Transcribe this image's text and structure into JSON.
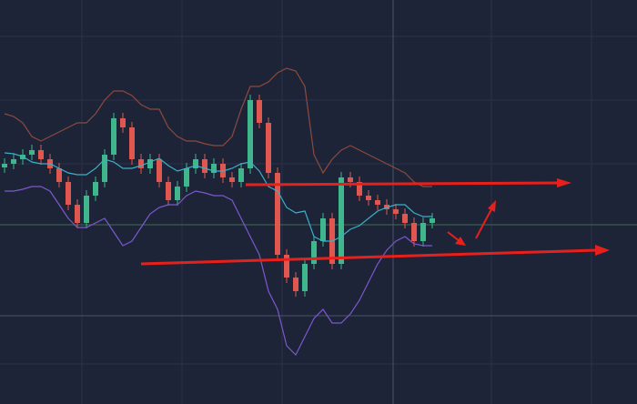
{
  "chart_data": {
    "type": "candlestick",
    "ylim": [
      0,
      444
    ],
    "up_color": "#3fb68b",
    "down_color": "#e0574f",
    "open": [
      260,
      264,
      269,
      274,
      279,
      269,
      259,
      244,
      219,
      199,
      229,
      244,
      274,
      314,
      304,
      269,
      259,
      269,
      244,
      224,
      239,
      259,
      269,
      254,
      264,
      249,
      244,
      259,
      334,
      309,
      254,
      164,
      139,
      124,
      154,
      179,
      204,
      154,
      249,
      244,
      229,
      224,
      219,
      214,
      209,
      199,
      179,
      199
    ],
    "high": [
      270,
      275,
      280,
      285,
      285,
      275,
      265,
      250,
      225,
      235,
      250,
      280,
      320,
      320,
      310,
      275,
      275,
      275,
      250,
      245,
      265,
      275,
      275,
      270,
      270,
      255,
      265,
      340,
      340,
      315,
      260,
      170,
      145,
      160,
      185,
      210,
      210,
      255,
      255,
      250,
      235,
      230,
      225,
      220,
      215,
      205,
      205,
      210
    ],
    "low": [
      254,
      258,
      263,
      268,
      263,
      253,
      238,
      213,
      193,
      193,
      223,
      238,
      268,
      298,
      263,
      253,
      253,
      238,
      218,
      218,
      233,
      253,
      248,
      248,
      243,
      238,
      238,
      253,
      303,
      248,
      158,
      133,
      118,
      118,
      148,
      173,
      148,
      148,
      238,
      223,
      218,
      213,
      208,
      203,
      193,
      173,
      173,
      193
    ],
    "close": [
      264,
      269,
      274,
      279,
      269,
      259,
      244,
      219,
      199,
      229,
      244,
      274,
      314,
      304,
      269,
      259,
      269,
      244,
      224,
      239,
      259,
      269,
      254,
      264,
      249,
      244,
      259,
      334,
      309,
      254,
      164,
      139,
      124,
      154,
      179,
      204,
      154,
      249,
      244,
      229,
      224,
      219,
      214,
      209,
      199,
      179,
      199,
      204
    ],
    "overlays": [
      {
        "color": "#8c4a3c",
        "values": [
          319,
          316,
          309,
          294,
          289,
          294,
          299,
          304,
          309,
          309,
          319,
          334,
          344,
          344,
          339,
          329,
          324,
          324,
          304,
          294,
          289,
          289,
          286,
          284,
          284,
          294,
          324,
          349,
          349,
          354,
          364,
          369,
          366,
          349,
          274,
          254,
          269,
          279,
          284,
          279,
          274,
          269,
          264,
          259,
          254,
          244,
          239,
          239
        ]
      },
      {
        "color": "#7b58cc",
        "values": [
          234,
          234,
          236,
          239,
          239,
          234,
          219,
          204,
          194,
          194,
          199,
          204,
          189,
          174,
          179,
          194,
          209,
          216,
          219,
          219,
          229,
          234,
          232,
          229,
          229,
          224,
          204,
          184,
          164,
          124,
          104,
          64,
          54,
          74,
          94,
          104,
          89,
          89,
          99,
          114,
          134,
          154,
          169,
          179,
          184,
          176,
          174,
          174
        ]
      },
      {
        "color": "#3ab0c8",
        "values": [
          276,
          275,
          272,
          266,
          264,
          264,
          259,
          254,
          252,
          252,
          259,
          269,
          266,
          259,
          259,
          262,
          266,
          270,
          262,
          256,
          259,
          262,
          259,
          256,
          256,
          259,
          264,
          266,
          256,
          239,
          234,
          216,
          210,
          212,
          184,
          179,
          179,
          184,
          192,
          196,
          204,
          212,
          216,
          219,
          219,
          210,
          206,
          206
        ]
      }
    ]
  }
}
